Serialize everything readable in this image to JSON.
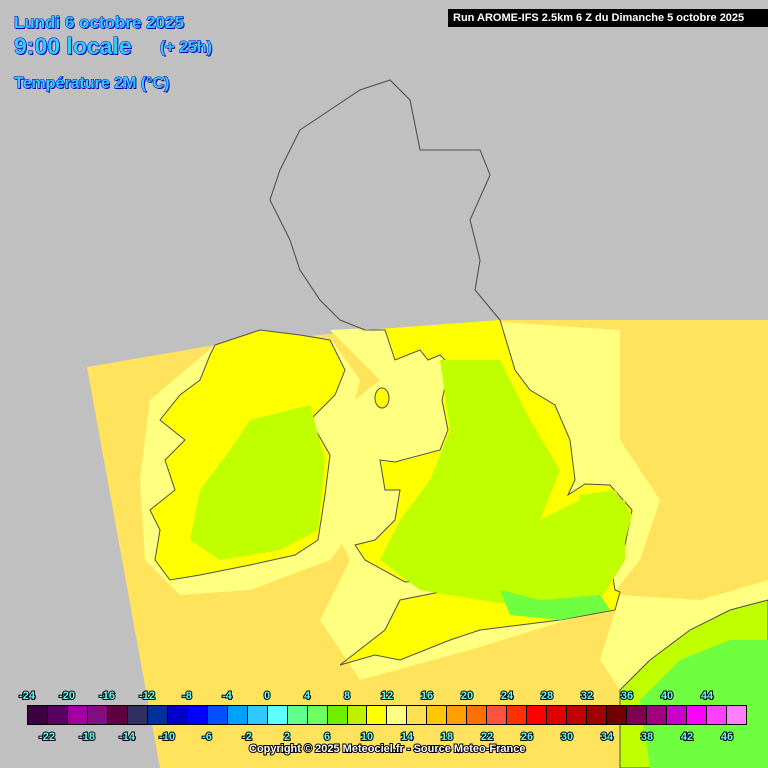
{
  "header": {
    "date": "Lundi 6 octobre 2025",
    "time": "9:00 locale",
    "lead": "(+ 25h)",
    "parameter": "Température 2M (°C)",
    "run": "Run AROME-IFS 2.5km 6 Z du Dimanche 5 octobre 2025"
  },
  "colors": {
    "background": "#c0c0c0",
    "domain_base": "#ffe35c",
    "light_yellow": "#ffff80",
    "yellow": "#ffff00",
    "yellow_green": "#c0ff00",
    "green": "#70ff40",
    "aqua": "#60ff90",
    "coast": "#505050"
  },
  "legend": {
    "top_labels": [
      "-24",
      "-20",
      "-16",
      "-12",
      "-8",
      "-4",
      "0",
      "4",
      "8",
      "12",
      "16",
      "20",
      "24",
      "28",
      "32",
      "36",
      "40",
      "44"
    ],
    "bottom_labels": [
      "-22",
      "-18",
      "-14",
      "-10",
      "-6",
      "-2",
      "2",
      "6",
      "10",
      "14",
      "18",
      "22",
      "26",
      "30",
      "34",
      "38",
      "42",
      "46"
    ],
    "swatches": [
      "#3a0040",
      "#5a0060",
      "#a000a0",
      "#801080",
      "#600040",
      "#303060",
      "#003099",
      "#0000c8",
      "#0000ff",
      "#0050ff",
      "#00a0ff",
      "#30c8ff",
      "#60ffff",
      "#60ff90",
      "#70ff60",
      "#70f000",
      "#c0f000",
      "#ffff00",
      "#ffff80",
      "#ffe050",
      "#ffc800",
      "#ffa000",
      "#ff7000",
      "#ff5040",
      "#ff3000",
      "#ff0000",
      "#e00000",
      "#c00000",
      "#a00000",
      "#700000",
      "#800050",
      "#a00080",
      "#c800c8",
      "#ff00ff",
      "#ff40ff",
      "#ff80ff"
    ]
  },
  "copyright": "Copyright © 2025 Meteociel.fr - Source Meteo-France"
}
